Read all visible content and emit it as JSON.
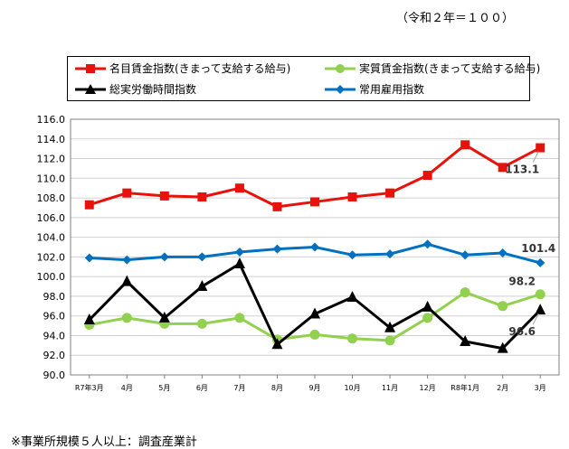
{
  "header": {
    "unit_note": "（令和２年＝１００）"
  },
  "footnote": "※事業所規模５人以上：調査産業計",
  "legend": {
    "items": [
      {
        "label": "名目賃金指数(きまって支給する給与)",
        "color": "#e8120c",
        "marker": "square"
      },
      {
        "label": "実質賃金指数(きまって支給する給与)",
        "color": "#92d050",
        "marker": "circle"
      },
      {
        "label": "総実労働時間指数",
        "color": "#000000",
        "marker": "triangle"
      },
      {
        "label": "常用雇用指数",
        "color": "#0070c0",
        "marker": "diamond"
      }
    ]
  },
  "chart_data": {
    "type": "line",
    "categories": [
      "R7年3月",
      "4月",
      "5月",
      "6月",
      "7月",
      "8月",
      "9月",
      "10月",
      "11月",
      "12月",
      "R8年1月",
      "2月",
      "3月"
    ],
    "ylim": [
      90.0,
      116.0
    ],
    "yticks": [
      "90.0",
      "92.0",
      "94.0",
      "96.0",
      "98.0",
      "100.0",
      "102.0",
      "104.0",
      "106.0",
      "108.0",
      "110.0",
      "112.0",
      "114.0",
      "116.0"
    ],
    "grid": true,
    "legend_position": "top",
    "series": [
      {
        "name": "名目賃金指数(きまって支給する給与)",
        "color": "#e8120c",
        "marker": "square",
        "values": [
          107.3,
          108.5,
          108.2,
          108.1,
          109.0,
          107.1,
          107.6,
          108.1,
          108.5,
          110.3,
          113.4,
          111.1,
          113.1
        ]
      },
      {
        "name": "実質賃金指数(きまって支給する給与)",
        "color": "#92d050",
        "marker": "circle",
        "values": [
          95.1,
          95.8,
          95.2,
          95.2,
          95.8,
          93.6,
          94.1,
          93.7,
          93.5,
          95.8,
          98.4,
          97.0,
          98.2
        ]
      },
      {
        "name": "総実労働時間指数",
        "color": "#000000",
        "marker": "triangle",
        "values": [
          95.6,
          99.5,
          95.8,
          99.0,
          101.3,
          93.1,
          96.2,
          97.9,
          94.8,
          96.9,
          93.4,
          92.7,
          96.6
        ]
      },
      {
        "name": "常用雇用指数",
        "color": "#0070c0",
        "marker": "diamond",
        "values": [
          101.9,
          101.7,
          102.0,
          102.0,
          102.5,
          102.8,
          103.0,
          102.2,
          102.3,
          103.3,
          102.2,
          102.4,
          101.4
        ]
      }
    ],
    "annotations": [
      {
        "series": 0,
        "index": 12,
        "text": "113.1",
        "placement": "below-left"
      },
      {
        "series": 3,
        "index": 12,
        "text": "101.4",
        "placement": "above"
      },
      {
        "series": 1,
        "index": 12,
        "text": "98.2",
        "placement": "above-left"
      },
      {
        "series": 2,
        "index": 12,
        "text": "96.6",
        "placement": "below-left"
      }
    ]
  }
}
